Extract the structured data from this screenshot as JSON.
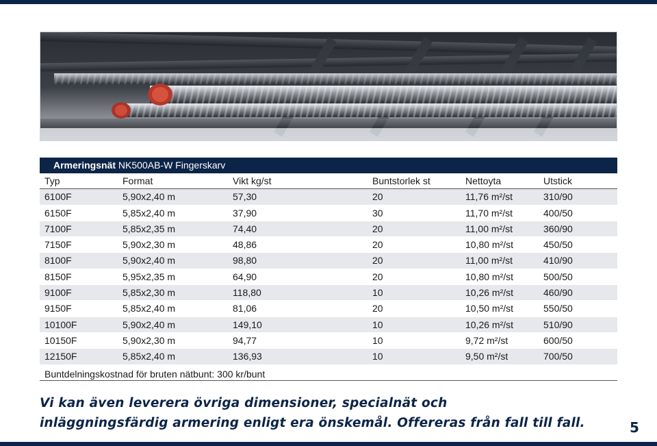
{
  "photo": {
    "subject": "rebar-steel-bars"
  },
  "table": {
    "title_bold": "Armeringsnät",
    "title_rest": "NK500AB-W Fingerskarv",
    "headers": [
      "Typ",
      "Format",
      "Vikt kg/st",
      "Buntstorlek st",
      "Nettoyta",
      "Utstick"
    ],
    "rows": [
      [
        "6100F",
        "5,90x2,40 m",
        "57,30",
        "20",
        "11,76 m²/st",
        "310/90"
      ],
      [
        "6150F",
        "5,85x2,40 m",
        "37,90",
        "30",
        "11,70 m²/st",
        "400/50"
      ],
      [
        "7100F",
        "5,85x2,35 m",
        "74,40",
        "20",
        "11,00 m²/st",
        "360/90"
      ],
      [
        "7150F",
        "5,90x2,30 m",
        "48,86",
        "20",
        "10,80 m²/st",
        "450/50"
      ],
      [
        "8100F",
        "5,90x2,40 m",
        "98,80",
        "20",
        "11,00 m²/st",
        "410/90"
      ],
      [
        "8150F",
        "5,95x2,35 m",
        "64,90",
        "20",
        "10,80 m²/st",
        "500/50"
      ],
      [
        "9100F",
        "5,85x2,30 m",
        "118,80",
        "10",
        "10,26 m²/st",
        "460/90"
      ],
      [
        "9150F",
        "5,85x2,40 m",
        "81,06",
        "20",
        "10,50 m²/st",
        "550/50"
      ],
      [
        "10100F",
        "5,90x2,40 m",
        "149,10",
        "10",
        "10,26 m²/st",
        "510/90"
      ],
      [
        "10150F",
        "5,90x2,30 m",
        "94,77",
        "10",
        "9,72 m²/st",
        "600/50"
      ],
      [
        "12150F",
        "5,85x2,40 m",
        "136,93",
        "10",
        "9,50 m²/st",
        "700/50"
      ]
    ],
    "footnote": "Buntdelningskostnad för bruten nätbunt: 300 kr/bunt"
  },
  "promo": {
    "line1": "Vi kan även leverera övriga dimensioner, specialnät och",
    "line2": "inläggningsfärdig armering enligt era önskemål. Offereras från fall till fall."
  },
  "page_number": "5",
  "colors": {
    "brand_navy": "#0c2448",
    "row_shade": "#e6e8eb"
  }
}
